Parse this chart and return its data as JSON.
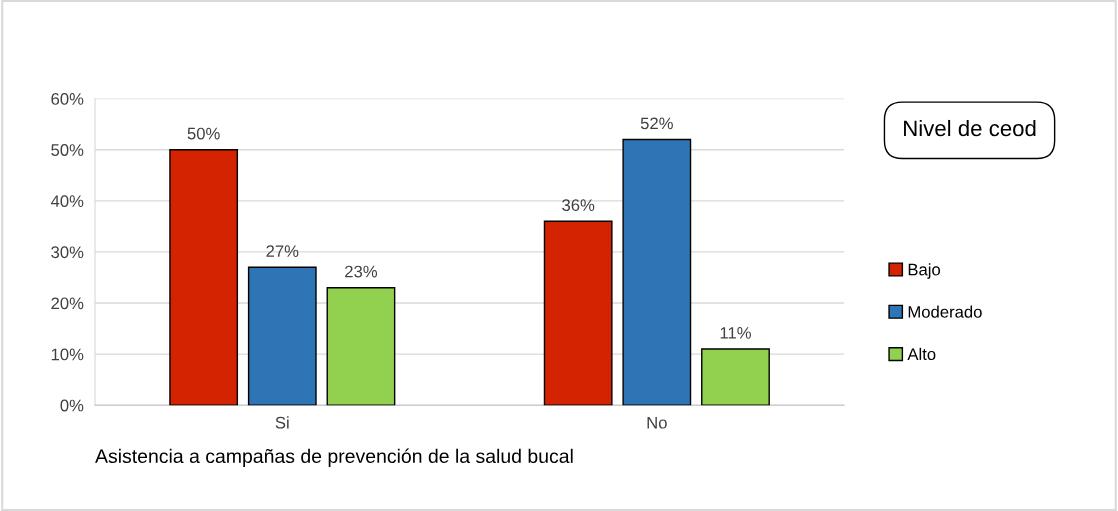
{
  "chart_data": {
    "type": "bar",
    "xlabel": "Asistencia a campañas de prevención de la salud bucal",
    "legend_title": "Nivel de ceod",
    "categories": [
      "Si",
      "No"
    ],
    "series": [
      {
        "name": "Bajo",
        "color": "#d42300",
        "values": [
          50,
          36
        ],
        "value_labels": [
          "50%",
          "36%"
        ]
      },
      {
        "name": "Moderado",
        "color": "#2e75b6",
        "values": [
          27,
          52
        ],
        "value_labels": [
          "27%",
          "52%"
        ]
      },
      {
        "name": "Alto",
        "color": "#92d050",
        "values": [
          23,
          11
        ],
        "value_labels": [
          "23%",
          "11%"
        ]
      }
    ],
    "ylim": [
      0,
      60
    ],
    "yticks": [
      {
        "value": 0,
        "label": "0%"
      },
      {
        "value": 10,
        "label": "10%"
      },
      {
        "value": 20,
        "label": "20%"
      },
      {
        "value": 30,
        "label": "30%"
      },
      {
        "value": 40,
        "label": "40%"
      },
      {
        "value": 50,
        "label": "50%"
      },
      {
        "value": 60,
        "label": "60%"
      }
    ],
    "grid": "y",
    "legend": "right"
  }
}
